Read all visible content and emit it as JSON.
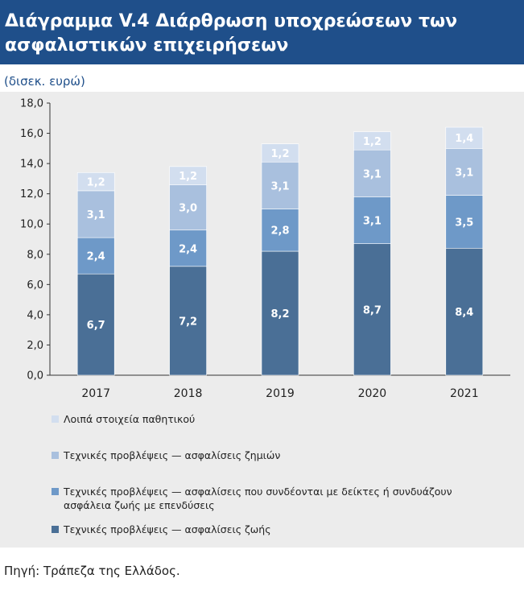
{
  "header": {
    "title_line1": "Διάγραμμα V.4 Διάρθρωση υποχρεώσεων των",
    "title_line2": "ασφαλιστικών επιχειρήσεων"
  },
  "unit_label": "(δισεκ. ευρώ)",
  "source": "Πηγή: Τράπεζα της Ελλάδος.",
  "colors": {
    "series_life": "#4a6f96",
    "series_linked": "#6e99c8",
    "series_nonlife": "#a9c0de",
    "series_other": "#d2deef",
    "panel_bg": "#ececec",
    "title_bg": "#1f4f8a"
  },
  "chart_data": {
    "type": "bar",
    "stacked": true,
    "categories": [
      "2017",
      "2018",
      "2019",
      "2020",
      "2021"
    ],
    "ylim": [
      0,
      18
    ],
    "yticks": [
      "0,0",
      "2,0",
      "4,0",
      "6,0",
      "8,0",
      "10,0",
      "12,0",
      "14,0",
      "16,0",
      "18,0"
    ],
    "series": [
      {
        "name": "Τεχνικές προβλέψεις — ασφαλίσεις ζωής",
        "values": [
          6.7,
          7.2,
          8.2,
          8.7,
          8.4
        ],
        "labels": [
          "6,7",
          "7,2",
          "8,2",
          "8,7",
          "8,4"
        ]
      },
      {
        "name": "Τεχνικές προβλέψεις — ασφαλίσεις που συνδέονται με δείκτες ή συνδυάζουν ασφάλεια ζωής με επενδύσεις",
        "values": [
          2.4,
          2.4,
          2.8,
          3.1,
          3.5
        ],
        "labels": [
          "2,4",
          "2,4",
          "2,8",
          "3,1",
          "3,5"
        ]
      },
      {
        "name": "Τεχνικές προβλέψεις — ασφαλίσεις ζημιών",
        "values": [
          3.1,
          3.0,
          3.1,
          3.1,
          3.1
        ],
        "labels": [
          "3,1",
          "3,0",
          "3,1",
          "3,1",
          "3,1"
        ]
      },
      {
        "name": "Λοιπά στοιχεία παθητικού",
        "values": [
          1.2,
          1.2,
          1.2,
          1.2,
          1.4
        ],
        "labels": [
          "1,2",
          "1,2",
          "1,2",
          "1,2",
          "1,4"
        ]
      }
    ],
    "legend": {
      "placement": "bottom",
      "order": [
        3,
        2,
        1,
        0
      ]
    }
  }
}
